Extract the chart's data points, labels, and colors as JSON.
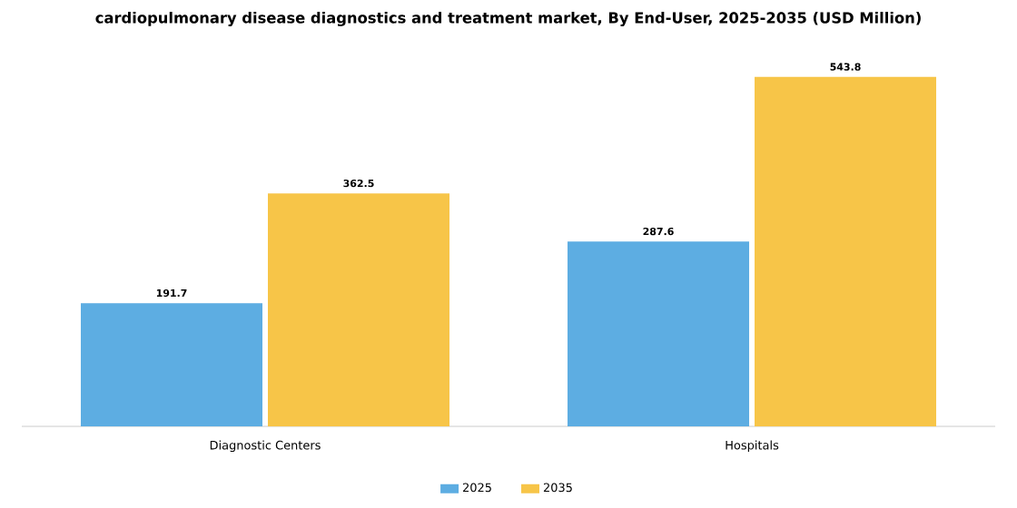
{
  "chart_data": {
    "type": "bar",
    "title": "cardiopulmonary disease diagnostics and treatment market, By End-User, 2025-2035 (USD Million)",
    "categories": [
      "Diagnostic Centers",
      "Hospitals"
    ],
    "series": [
      {
        "name": "2025",
        "color": "#5dade2",
        "values": [
          191.7,
          287.6
        ]
      },
      {
        "name": "2035",
        "color": "#f7c548",
        "values": [
          362.5,
          543.8
        ]
      }
    ],
    "data_labels": true,
    "legend": "bottom"
  }
}
